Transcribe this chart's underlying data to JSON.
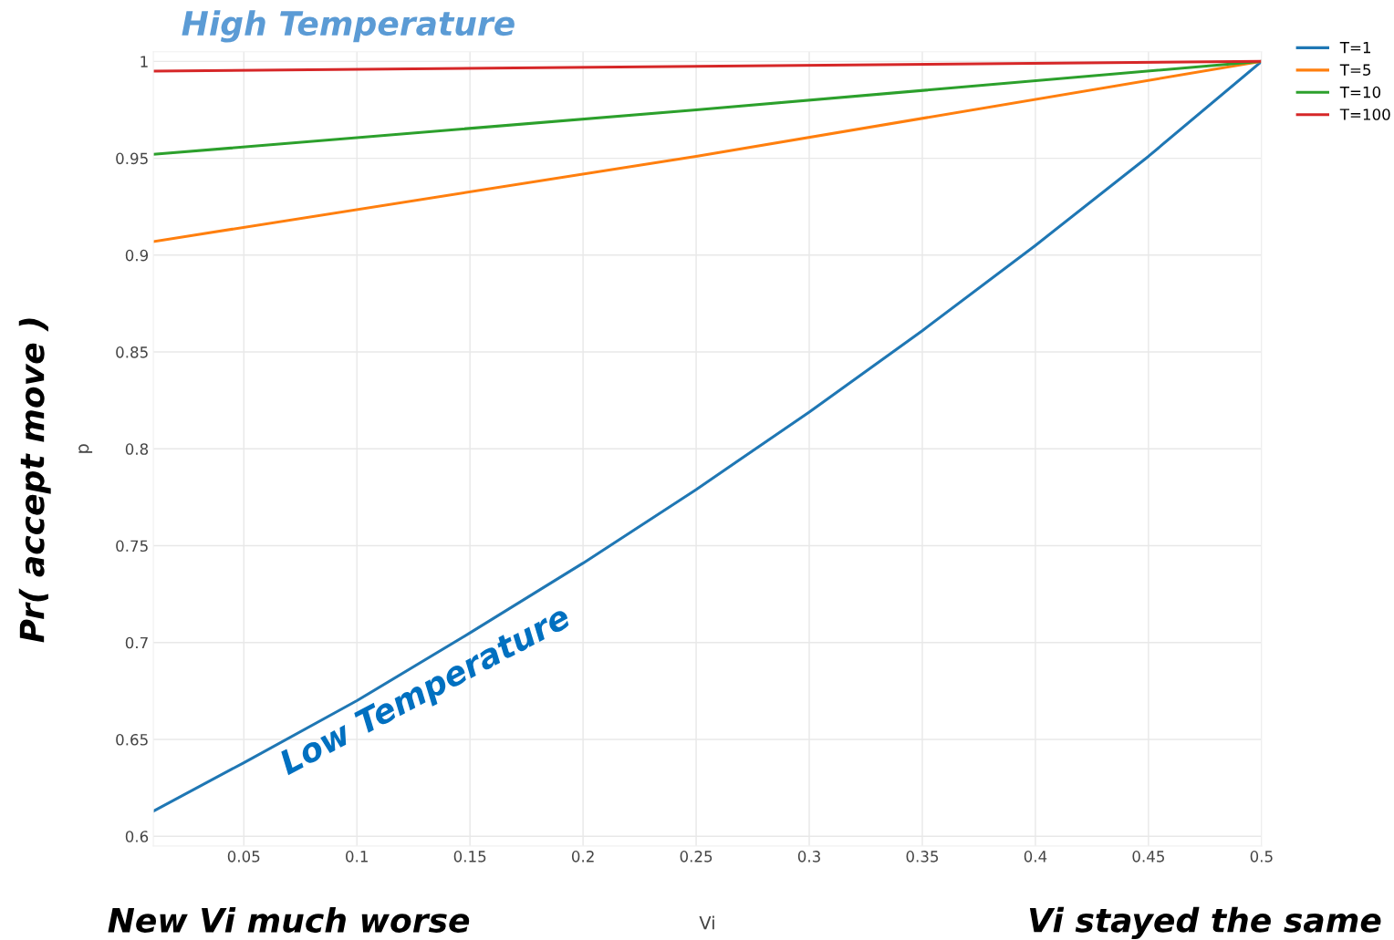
{
  "chart_data": {
    "type": "line",
    "xlabel": "Vi",
    "ylabel": "p",
    "xlim": [
      0.01,
      0.5
    ],
    "ylim": [
      0.595,
      1.005
    ],
    "xticks": [
      0.05,
      0.1,
      0.15,
      0.2,
      0.25,
      0.3,
      0.35,
      0.4,
      0.45,
      0.5
    ],
    "yticks": [
      0.6,
      0.65,
      0.7,
      0.75,
      0.8,
      0.85,
      0.9,
      0.95,
      1
    ],
    "grid": true,
    "legend": "top right",
    "marker": "none",
    "line_style": "solid",
    "series": [
      {
        "name": "T=1",
        "color": "#1f77b4",
        "x": [
          0.01,
          0.05,
          0.1,
          0.15,
          0.2,
          0.25,
          0.3,
          0.35,
          0.4,
          0.45,
          0.5
        ],
        "values": [
          0.613,
          0.638,
          0.67,
          0.705,
          0.741,
          0.779,
          0.819,
          0.861,
          0.905,
          0.951,
          1
        ]
      },
      {
        "name": "T=5",
        "color": "#ff7f0e",
        "x": [
          0.01,
          0.25,
          0.5
        ],
        "values": [
          0.907,
          0.951,
          1
        ]
      },
      {
        "name": "T=10",
        "color": "#2ca02c",
        "x": [
          0.01,
          0.25,
          0.5
        ],
        "values": [
          0.952,
          0.975,
          1
        ]
      },
      {
        "name": "T=100",
        "color": "#d62728",
        "x": [
          0.01,
          0.5
        ],
        "values": [
          0.995,
          1
        ]
      }
    ],
    "annotations": [
      "High Temperature",
      "Low Temperature",
      "Pr( accept move )",
      "New Vi much worse",
      "Vi stayed the same"
    ]
  }
}
